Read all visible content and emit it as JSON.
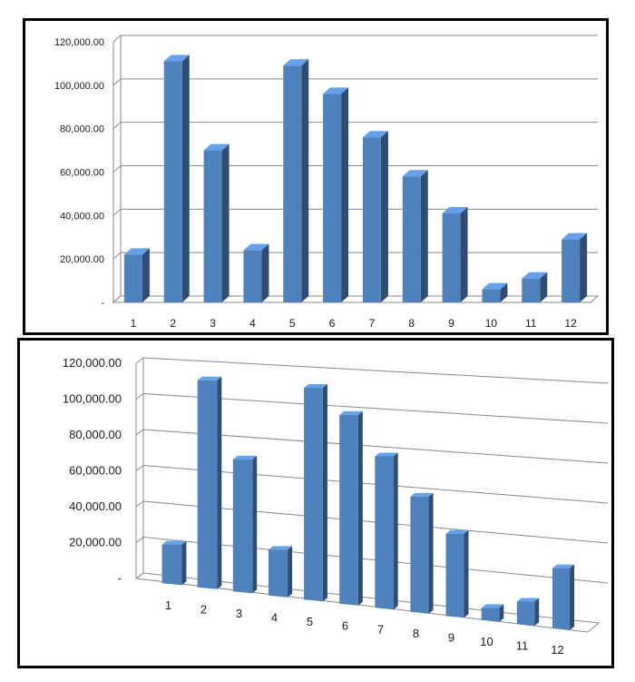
{
  "chart_data": [
    {
      "type": "bar",
      "categories": [
        "1",
        "2",
        "3",
        "4",
        "5",
        "6",
        "7",
        "8",
        "9",
        "10",
        "11",
        "12"
      ],
      "values": [
        22000,
        111000,
        70000,
        24000,
        109000,
        96000,
        76000,
        58000,
        41000,
        6000,
        11000,
        29000
      ],
      "y_tick_labels": [
        "-",
        "20,000.00",
        "40,000.00",
        "60,000.00",
        "80,000.00",
        "100,000.00",
        "120,000.00"
      ],
      "ylim": [
        0,
        120000
      ],
      "grid": true,
      "legend": "none",
      "style": "3d-column",
      "bar_color": "#4F81BD"
    },
    {
      "type": "bar",
      "categories": [
        "1",
        "2",
        "3",
        "4",
        "5",
        "6",
        "7",
        "8",
        "9",
        "10",
        "11",
        "12"
      ],
      "values": [
        21000,
        111000,
        70000,
        24000,
        110000,
        97000,
        77000,
        58000,
        41000,
        6000,
        11000,
        29000
      ],
      "y_tick_labels": [
        "-",
        "20,000.00",
        "40,000.00",
        "60,000.00",
        "80,000.00",
        "100,000.00",
        "120,000.00"
      ],
      "ylim": [
        0,
        120000
      ],
      "grid": true,
      "legend": "none",
      "style": "3d-column-perspective",
      "bar_color": "#4F81BD"
    }
  ]
}
